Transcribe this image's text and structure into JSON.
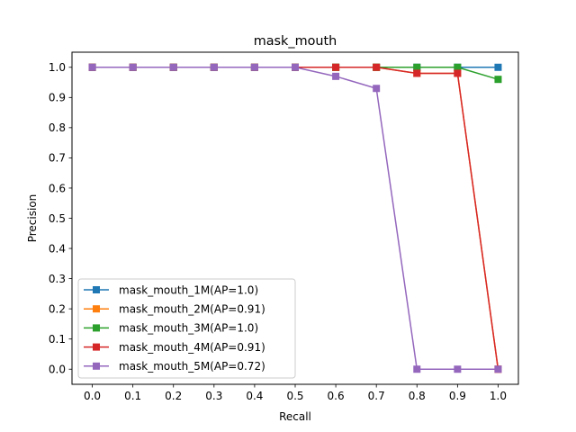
{
  "chart_data": {
    "type": "line",
    "title": "mask_mouth",
    "xlabel": "Recall",
    "ylabel": "Precision",
    "x": [
      0.0,
      0.1,
      0.2,
      0.3,
      0.4,
      0.5,
      0.6,
      0.7,
      0.8,
      0.9,
      1.0
    ],
    "xlim": [
      -0.05,
      1.05
    ],
    "ylim": [
      -0.05,
      1.05
    ],
    "xticks": [
      "0.0",
      "0.1",
      "0.2",
      "0.3",
      "0.4",
      "0.5",
      "0.6",
      "0.7",
      "0.8",
      "0.9",
      "1.0"
    ],
    "yticks": [
      "0.0",
      "0.1",
      "0.2",
      "0.3",
      "0.4",
      "0.5",
      "0.6",
      "0.7",
      "0.8",
      "0.9",
      "1.0"
    ],
    "grid": false,
    "legend_position": "lower-left",
    "marker": "square",
    "series": [
      {
        "name": "mask_mouth_1M(AP=1.0)",
        "color": "#1f77b4",
        "values": [
          1.0,
          1.0,
          1.0,
          1.0,
          1.0,
          1.0,
          1.0,
          1.0,
          1.0,
          1.0,
          1.0
        ]
      },
      {
        "name": "mask_mouth_2M(AP=0.91)",
        "color": "#ff7f0e",
        "values": [
          1.0,
          1.0,
          1.0,
          1.0,
          1.0,
          1.0,
          1.0,
          1.0,
          0.98,
          0.98,
          0.0
        ]
      },
      {
        "name": "mask_mouth_3M(AP=1.0)",
        "color": "#2ca02c",
        "values": [
          1.0,
          1.0,
          1.0,
          1.0,
          1.0,
          1.0,
          1.0,
          1.0,
          1.0,
          1.0,
          0.96
        ]
      },
      {
        "name": "mask_mouth_4M(AP=0.91)",
        "color": "#d62728",
        "values": [
          1.0,
          1.0,
          1.0,
          1.0,
          1.0,
          1.0,
          1.0,
          1.0,
          0.98,
          0.98,
          0.0
        ]
      },
      {
        "name": "mask_mouth_5M(AP=0.72)",
        "color": "#9467bd",
        "values": [
          1.0,
          1.0,
          1.0,
          1.0,
          1.0,
          1.0,
          0.97,
          0.93,
          0.0,
          0.0,
          0.0
        ]
      }
    ]
  }
}
